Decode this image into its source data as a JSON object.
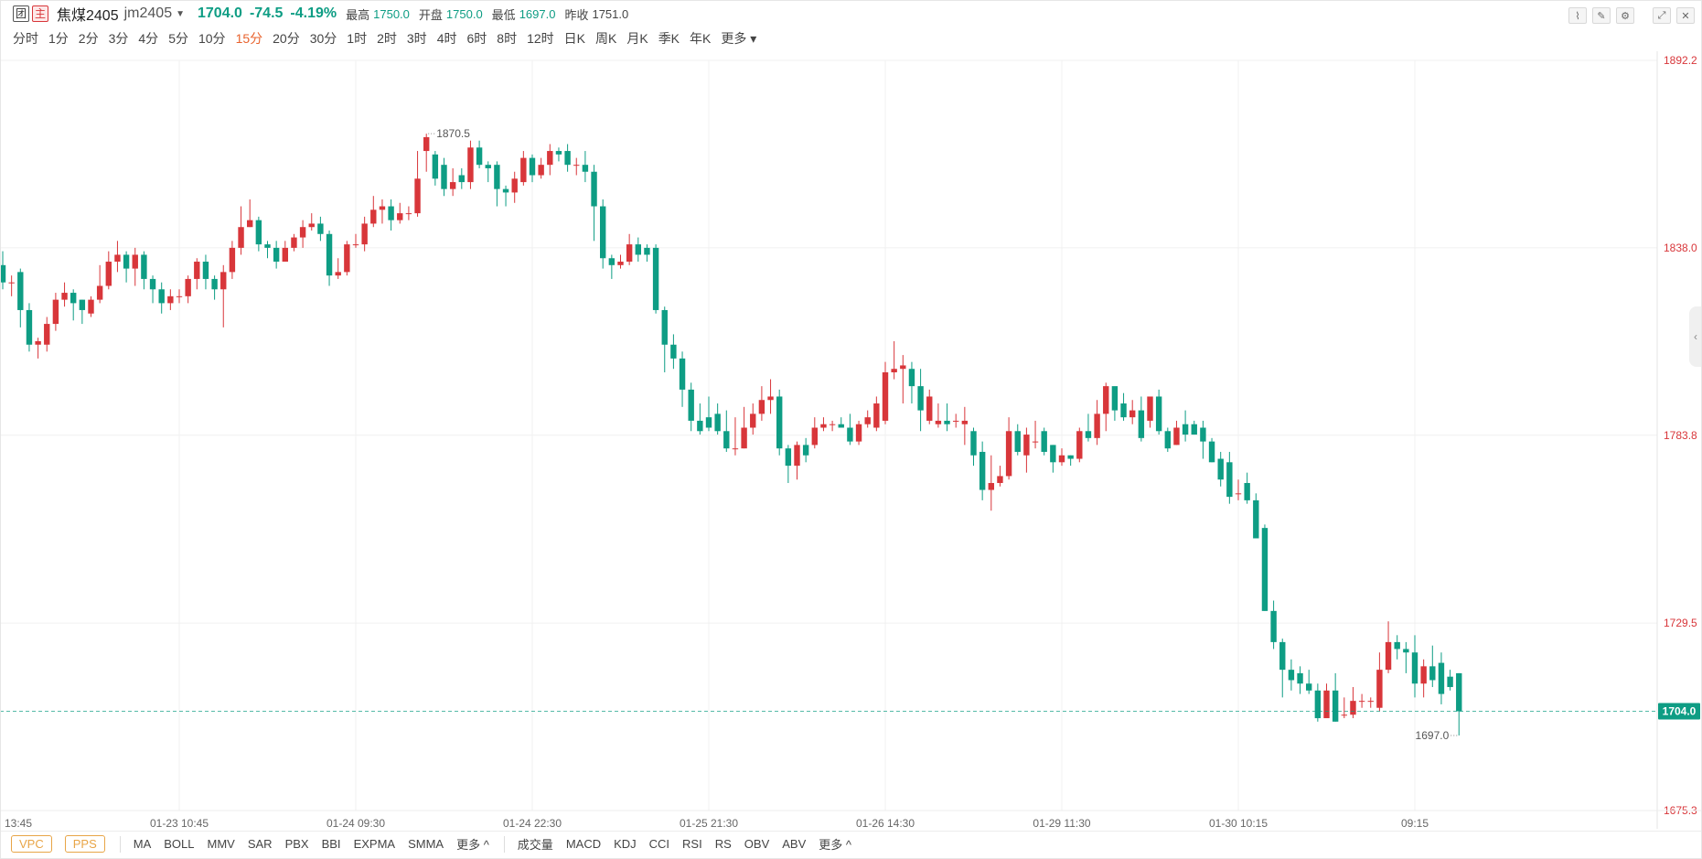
{
  "header": {
    "badge1": "团",
    "badge2": "主",
    "name": "焦煤2405",
    "code": "jm2405",
    "price": "1704.0",
    "change": "-74.5",
    "change_pct": "-4.19%",
    "high_label": "最高",
    "high": "1750.0",
    "open_label": "开盘",
    "open": "1750.0",
    "low_label": "最低",
    "low": "1697.0",
    "prev_label": "昨收",
    "prev": "1751.0"
  },
  "periods": [
    "分时",
    "1分",
    "2分",
    "3分",
    "4分",
    "5分",
    "10分",
    "15分",
    "20分",
    "30分",
    "1时",
    "2时",
    "3时",
    "4时",
    "6时",
    "8时",
    "12时",
    "日K",
    "周K",
    "月K",
    "季K",
    "年K",
    "更多"
  ],
  "active_period": "15分",
  "indicators_main": [
    "MA",
    "BOLL",
    "MMV",
    "SAR",
    "PBX",
    "BBI",
    "EXPMA",
    "SMMA",
    "更多 ^"
  ],
  "indicators_buttons": [
    "VPC",
    "PPS"
  ],
  "indicators_sub": [
    "成交量",
    "MACD",
    "KDJ",
    "CCI",
    "RSI",
    "RS",
    "OBV",
    "ABV",
    "更多 ^"
  ],
  "colors": {
    "up": "#d8363a",
    "down": "#0e9d84",
    "grid": "#f0f0f0"
  },
  "chart_data": {
    "type": "candlestick",
    "title": "",
    "y_ticks": [
      1892.2,
      1838.0,
      1783.8,
      1729.5,
      1675.3
    ],
    "ylim": [
      1675.3,
      1892.2
    ],
    "x_tick_labels": [
      "13:45",
      "01-23 10:45",
      "01-24 09:30",
      "01-24 22:30",
      "01-25 21:30",
      "01-26 14:30",
      "01-29 11:30",
      "01-30 10:15",
      "09:15"
    ],
    "x_tick_index": [
      0,
      20,
      40,
      60,
      80,
      100,
      120,
      140,
      160
    ],
    "last_price": "1704.0",
    "high_marker": "1870.5",
    "low_marker": "1697.0",
    "candles": [
      [
        1833,
        1828,
        1837,
        1826
      ],
      [
        1828,
        1828,
        1830,
        1824
      ],
      [
        1831,
        1820,
        1832,
        1815
      ],
      [
        1820,
        1810,
        1822,
        1808
      ],
      [
        1810,
        1811,
        1812,
        1806
      ],
      [
        1810,
        1816,
        1818,
        1808
      ],
      [
        1816,
        1823,
        1825,
        1814
      ],
      [
        1823,
        1825,
        1828,
        1821
      ],
      [
        1825,
        1822,
        1826,
        1817
      ],
      [
        1823,
        1820,
        1823,
        1816
      ],
      [
        1819,
        1823,
        1824,
        1818
      ],
      [
        1823,
        1827,
        1833,
        1822
      ],
      [
        1827,
        1834,
        1837,
        1826
      ],
      [
        1834,
        1836,
        1840,
        1831
      ],
      [
        1836,
        1832,
        1837,
        1828
      ],
      [
        1832,
        1836,
        1838,
        1827
      ],
      [
        1836,
        1829,
        1837,
        1826
      ],
      [
        1829,
        1826,
        1830,
        1822
      ],
      [
        1826,
        1822,
        1828,
        1819
      ],
      [
        1822,
        1824,
        1826,
        1820
      ],
      [
        1824,
        1824,
        1826,
        1822
      ],
      [
        1824,
        1829,
        1830,
        1822
      ],
      [
        1829,
        1834,
        1835,
        1826
      ],
      [
        1834,
        1829,
        1836,
        1826
      ],
      [
        1829,
        1826,
        1830,
        1823
      ],
      [
        1826,
        1831,
        1833,
        1815
      ],
      [
        1831,
        1838,
        1840,
        1829
      ],
      [
        1838,
        1844,
        1850,
        1836
      ],
      [
        1844,
        1846,
        1852,
        1844
      ],
      [
        1846,
        1839,
        1847,
        1837
      ],
      [
        1839,
        1838,
        1840,
        1835
      ],
      [
        1838,
        1834,
        1840,
        1832
      ],
      [
        1834,
        1838,
        1840,
        1834
      ],
      [
        1838,
        1841,
        1842,
        1837
      ],
      [
        1841,
        1844,
        1846,
        1838
      ],
      [
        1844,
        1845,
        1848,
        1843
      ],
      [
        1845,
        1842,
        1847,
        1840
      ],
      [
        1842,
        1830,
        1843,
        1827
      ],
      [
        1830,
        1831,
        1835,
        1829
      ],
      [
        1831,
        1839,
        1840,
        1830
      ],
      [
        1839,
        1839,
        1842,
        1838
      ],
      [
        1839,
        1845,
        1847,
        1837
      ],
      [
        1845,
        1849,
        1853,
        1844
      ],
      [
        1849,
        1850,
        1852,
        1845
      ],
      [
        1850,
        1846,
        1852,
        1843
      ],
      [
        1846,
        1848,
        1851,
        1845
      ],
      [
        1848,
        1848,
        1850,
        1846
      ],
      [
        1848,
        1858,
        1866,
        1847
      ],
      [
        1866,
        1870,
        1871,
        1860
      ],
      [
        1865,
        1858,
        1866,
        1856
      ],
      [
        1862,
        1855,
        1864,
        1853
      ],
      [
        1855,
        1857,
        1861,
        1853
      ],
      [
        1859,
        1857,
        1861,
        1855
      ],
      [
        1857,
        1867,
        1869,
        1855
      ],
      [
        1867,
        1862,
        1869,
        1861
      ],
      [
        1862,
        1861,
        1863,
        1857
      ],
      [
        1862,
        1855,
        1863,
        1850
      ],
      [
        1855,
        1854,
        1856,
        1850
      ],
      [
        1854,
        1858,
        1860,
        1851
      ],
      [
        1857,
        1864,
        1866,
        1856
      ],
      [
        1864,
        1859,
        1865,
        1857
      ],
      [
        1859,
        1862,
        1864,
        1858
      ],
      [
        1862,
        1866,
        1868,
        1859
      ],
      [
        1866,
        1865,
        1867,
        1863
      ],
      [
        1866,
        1862,
        1868,
        1860
      ],
      [
        1862,
        1862,
        1864,
        1859
      ],
      [
        1862,
        1860,
        1866,
        1857
      ],
      [
        1860,
        1850,
        1862,
        1840
      ],
      [
        1850,
        1835,
        1852,
        1832
      ],
      [
        1835,
        1833,
        1836,
        1829
      ],
      [
        1833,
        1834,
        1836,
        1832
      ],
      [
        1834,
        1839,
        1842,
        1833
      ],
      [
        1839,
        1836,
        1841,
        1834
      ],
      [
        1838,
        1836,
        1839,
        1834
      ],
      [
        1838,
        1820,
        1839,
        1819
      ],
      [
        1820,
        1810,
        1821,
        1802
      ],
      [
        1810,
        1806,
        1813,
        1803
      ],
      [
        1806,
        1797,
        1808,
        1792
      ],
      [
        1797,
        1788,
        1799,
        1785
      ],
      [
        1788,
        1785,
        1793,
        1784
      ],
      [
        1789,
        1786,
        1795,
        1785
      ],
      [
        1790,
        1785,
        1793,
        1784
      ],
      [
        1785,
        1780,
        1791,
        1779
      ],
      [
        1780,
        1780,
        1789,
        1778
      ],
      [
        1780,
        1786,
        1792,
        1780
      ],
      [
        1786,
        1790,
        1793,
        1784
      ],
      [
        1790,
        1794,
        1798,
        1788
      ],
      [
        1794,
        1795,
        1800,
        1790
      ],
      [
        1795,
        1780,
        1797,
        1778
      ],
      [
        1780,
        1775,
        1781,
        1770
      ],
      [
        1775,
        1781,
        1782,
        1771
      ],
      [
        1781,
        1778,
        1783,
        1776
      ],
      [
        1781,
        1786,
        1789,
        1780
      ],
      [
        1786,
        1787,
        1789,
        1785
      ],
      [
        1787,
        1787,
        1788,
        1785
      ],
      [
        1787,
        1786,
        1789,
        1786
      ],
      [
        1786,
        1782,
        1790,
        1781
      ],
      [
        1782,
        1787,
        1788,
        1781
      ],
      [
        1787,
        1789,
        1791,
        1786
      ],
      [
        1786,
        1793,
        1795,
        1785
      ],
      [
        1788,
        1802,
        1805,
        1787
      ],
      [
        1802,
        1803,
        1811,
        1800
      ],
      [
        1803,
        1804,
        1807,
        1793
      ],
      [
        1803,
        1798,
        1805,
        1793
      ],
      [
        1798,
        1791,
        1803,
        1785
      ],
      [
        1788,
        1795,
        1797,
        1787
      ],
      [
        1787,
        1788,
        1793,
        1786
      ],
      [
        1788,
        1787,
        1793,
        1785
      ],
      [
        1788,
        1788,
        1790,
        1786
      ],
      [
        1787,
        1788,
        1792,
        1781
      ],
      [
        1785,
        1778,
        1786,
        1775
      ],
      [
        1779,
        1768,
        1782,
        1765
      ],
      [
        1768,
        1770,
        1778,
        1762
      ],
      [
        1770,
        1772,
        1775,
        1769
      ],
      [
        1772,
        1785,
        1789,
        1771
      ],
      [
        1785,
        1779,
        1787,
        1778
      ],
      [
        1778,
        1784,
        1786,
        1773
      ],
      [
        1782,
        1782,
        1788,
        1780
      ],
      [
        1785,
        1779,
        1786,
        1778
      ],
      [
        1781,
        1776,
        1781,
        1773
      ],
      [
        1776,
        1778,
        1780,
        1775
      ],
      [
        1778,
        1777,
        1778,
        1775
      ],
      [
        1777,
        1785,
        1786,
        1776
      ],
      [
        1785,
        1783,
        1790,
        1782
      ],
      [
        1783,
        1790,
        1794,
        1781
      ],
      [
        1790,
        1798,
        1799,
        1785
      ],
      [
        1798,
        1791,
        1797,
        1788
      ],
      [
        1793,
        1789,
        1796,
        1788
      ],
      [
        1789,
        1791,
        1794,
        1787
      ],
      [
        1791,
        1783,
        1795,
        1782
      ],
      [
        1788,
        1795,
        1795,
        1786
      ],
      [
        1795,
        1785,
        1797,
        1784
      ],
      [
        1785,
        1780,
        1786,
        1779
      ],
      [
        1781,
        1786,
        1788,
        1781
      ],
      [
        1787,
        1784,
        1791,
        1782
      ],
      [
        1787,
        1784,
        1788,
        1784
      ],
      [
        1786,
        1782,
        1788,
        1777
      ],
      [
        1782,
        1776,
        1783,
        1776
      ],
      [
        1777,
        1771,
        1779,
        1769
      ],
      [
        1776,
        1766,
        1779,
        1764
      ],
      [
        1767,
        1767,
        1771,
        1765
      ],
      [
        1770,
        1765,
        1773,
        1764
      ],
      [
        1765,
        1754,
        1767,
        1757
      ],
      [
        1757,
        1733,
        1758,
        1733
      ],
      [
        1733,
        1724,
        1736,
        1722
      ],
      [
        1724,
        1716,
        1725,
        1708
      ],
      [
        1716,
        1713,
        1719,
        1710
      ],
      [
        1715,
        1712,
        1717,
        1709
      ],
      [
        1712,
        1710,
        1716,
        1709
      ],
      [
        1710,
        1702,
        1712,
        1701
      ],
      [
        1702,
        1710,
        1712,
        1702
      ],
      [
        1710,
        1701,
        1715,
        1701
      ],
      [
        1703,
        1703,
        1708,
        1702
      ],
      [
        1703,
        1707,
        1711,
        1702
      ],
      [
        1707,
        1707,
        1709,
        1705
      ],
      [
        1707,
        1707,
        1708,
        1705
      ],
      [
        1705,
        1716,
        1721,
        1704
      ],
      [
        1716,
        1724,
        1730,
        1715
      ],
      [
        1724,
        1722,
        1726,
        1719
      ],
      [
        1722,
        1721,
        1724,
        1715
      ],
      [
        1721,
        1712,
        1726,
        1708
      ],
      [
        1712,
        1717,
        1719,
        1708
      ],
      [
        1717,
        1713,
        1723,
        1711
      ],
      [
        1718,
        1709,
        1721,
        1706
      ],
      [
        1714,
        1711,
        1716,
        1710
      ],
      [
        1715,
        1704,
        1715,
        1697
      ]
    ]
  }
}
